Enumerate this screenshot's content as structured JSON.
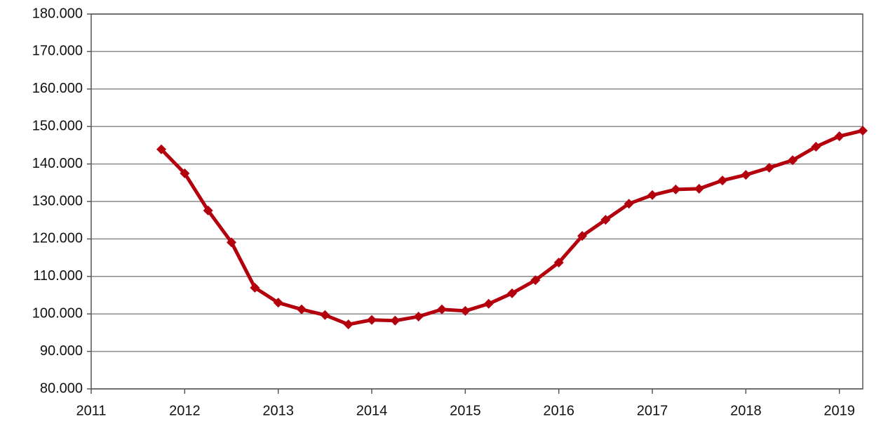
{
  "chart_data": {
    "type": "line",
    "x": [
      2011.75,
      2012,
      2012.25,
      2012.5,
      2012.75,
      2013,
      2013.25,
      2013.5,
      2013.75,
      2014,
      2014.25,
      2014.5,
      2014.75,
      2015,
      2015.25,
      2015.5,
      2015.75,
      2016,
      2016.25,
      2016.5,
      2016.75,
      2017,
      2017.25,
      2017.5,
      2017.75,
      2018,
      2018.25,
      2018.5,
      2018.75,
      2019,
      2019.25
    ],
    "series": [
      {
        "color": "#b3000c",
        "values": [
          143900,
          137500,
          127600,
          119100,
          107000,
          103000,
          101200,
          99700,
          97200,
          98400,
          98200,
          99300,
          101200,
          100800,
          102700,
          105500,
          109000,
          113700,
          120800,
          125100,
          129400,
          131700,
          133200,
          133400,
          135600,
          137100,
          139000,
          141000,
          144600,
          147400,
          148900
        ]
      }
    ],
    "xlim": [
      2011,
      2019.25
    ],
    "xticks": [
      2011,
      2012,
      2013,
      2014,
      2015,
      2016,
      2017,
      2018,
      2019
    ],
    "ylim": [
      80000,
      180000
    ],
    "yticks": [
      {
        "value": 80000,
        "label": "80.000"
      },
      {
        "value": 90000,
        "label": "90.000"
      },
      {
        "value": 100000,
        "label": "100.000"
      },
      {
        "value": 110000,
        "label": "110.000"
      },
      {
        "value": 120000,
        "label": "120.000"
      },
      {
        "value": 130000,
        "label": "130.000"
      },
      {
        "value": 140000,
        "label": "140.000"
      },
      {
        "value": 150000,
        "label": "150.000"
      },
      {
        "value": 160000,
        "label": "160.000"
      },
      {
        "value": 170000,
        "label": "170.000"
      },
      {
        "value": 180000,
        "label": "180.000"
      }
    ],
    "grid": true
  }
}
